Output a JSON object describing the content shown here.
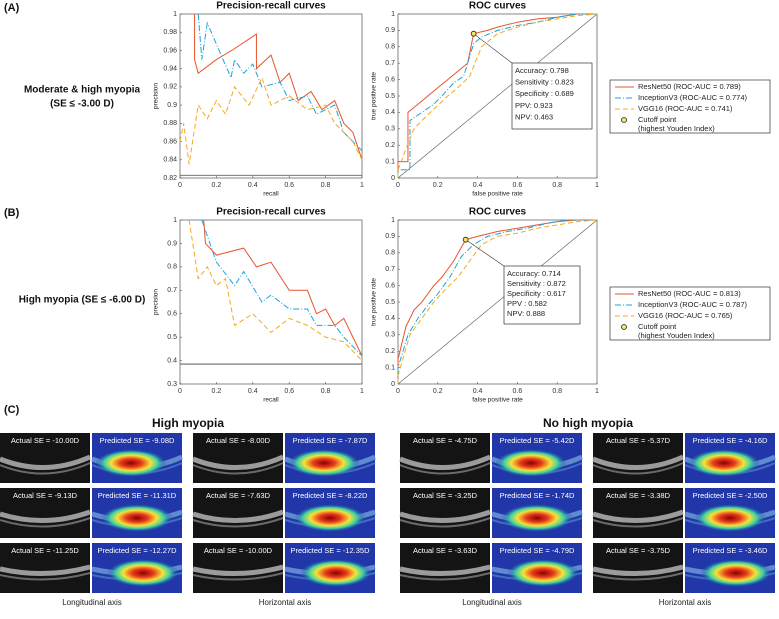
{
  "panel_labels": [
    "(A)",
    "(B)",
    "(C)"
  ],
  "row_labels": [
    [
      "Moderate & high myopia",
      "(SE ≤ -3.00 D)"
    ],
    [
      "High myopia (SE ≤ -6.00 D)"
    ]
  ],
  "chart_data": [
    {
      "type": "line",
      "title": "Precision-recall curves",
      "xlabel": "recall",
      "ylabel": "precision",
      "xlim": [
        0,
        1
      ],
      "ylim": [
        0.82,
        1
      ],
      "xticks": [
        0,
        0.2,
        0.4,
        0.6,
        0.8,
        1
      ],
      "yticks": [
        0.82,
        0.84,
        0.86,
        0.88,
        0.9,
        0.92,
        0.94,
        0.96,
        0.98,
        1
      ],
      "baseline": 0.823,
      "series": [
        {
          "color": "#e8552c",
          "style": "solid",
          "x": [
            0.08,
            0.08,
            0.1,
            0.2,
            0.3,
            0.42,
            0.42,
            0.5,
            0.55,
            0.6,
            0.65,
            0.72,
            0.78,
            0.85,
            0.9,
            0.95,
            1
          ],
          "values": [
            1,
            0.95,
            0.935,
            0.95,
            0.962,
            0.978,
            0.94,
            0.955,
            0.925,
            0.935,
            0.905,
            0.915,
            0.895,
            0.905,
            0.88,
            0.87,
            0.84
          ]
        },
        {
          "color": "#1aa3e0",
          "style": "dashdot",
          "x": [
            0.1,
            0.12,
            0.15,
            0.28,
            0.3,
            0.35,
            0.4,
            0.45,
            0.55,
            0.6,
            0.7,
            0.75,
            0.85,
            0.9,
            1
          ],
          "values": [
            1,
            0.95,
            0.99,
            0.93,
            0.95,
            0.935,
            0.945,
            0.92,
            0.925,
            0.905,
            0.91,
            0.89,
            0.9,
            0.87,
            0.85
          ]
        },
        {
          "color": "#f5a81c",
          "style": "dashed",
          "x": [
            0,
            0.02,
            0.05,
            0.1,
            0.15,
            0.2,
            0.25,
            0.3,
            0.38,
            0.45,
            0.5,
            0.6,
            0.7,
            0.8,
            0.85,
            0.95,
            1
          ],
          "values": [
            0.86,
            0.88,
            0.835,
            0.9,
            0.885,
            0.905,
            0.89,
            0.92,
            0.9,
            0.93,
            0.9,
            0.91,
            0.895,
            0.9,
            0.88,
            0.86,
            0.84
          ]
        }
      ]
    },
    {
      "type": "line",
      "title": "ROC curves",
      "xlabel": "false positive rate",
      "ylabel": "true positive rate",
      "xlim": [
        0,
        1
      ],
      "ylim": [
        0,
        1
      ],
      "xticks": [
        0,
        0.2,
        0.4,
        0.6,
        0.8,
        1
      ],
      "yticks": [
        0,
        0.1,
        0.2,
        0.3,
        0.4,
        0.5,
        0.6,
        0.7,
        0.8,
        0.9,
        1
      ],
      "diagonal": true,
      "series": [
        {
          "name": "ResNet50 (ROC-AUC = 0.789)",
          "color": "#e8552c",
          "style": "solid",
          "x": [
            0,
            0,
            0.05,
            0.05,
            0.1,
            0.15,
            0.2,
            0.25,
            0.3,
            0.35,
            0.38,
            0.45,
            0.5,
            0.6,
            0.7,
            0.8,
            0.9,
            1
          ],
          "values": [
            0,
            0.1,
            0.1,
            0.4,
            0.45,
            0.5,
            0.55,
            0.6,
            0.65,
            0.7,
            0.88,
            0.9,
            0.92,
            0.95,
            0.97,
            0.98,
            1,
            1
          ]
        },
        {
          "name": "InceptionV3 (ROC-AUC = 0.774)",
          "color": "#1aa3e0",
          "style": "dashdot",
          "x": [
            0,
            0,
            0.06,
            0.06,
            0.12,
            0.18,
            0.22,
            0.28,
            0.33,
            0.38,
            0.42,
            0.5,
            0.6,
            0.7,
            0.8,
            0.9,
            1
          ],
          "values": [
            0,
            0.05,
            0.05,
            0.35,
            0.4,
            0.45,
            0.5,
            0.58,
            0.62,
            0.82,
            0.86,
            0.9,
            0.93,
            0.95,
            0.98,
            1,
            1
          ]
        },
        {
          "name": "VGG16 (ROC-AUC = 0.741)",
          "color": "#f5a81c",
          "style": "dashed",
          "x": [
            0,
            0,
            0.08,
            0.12,
            0.18,
            0.25,
            0.3,
            0.36,
            0.42,
            0.5,
            0.6,
            0.7,
            0.8,
            0.9,
            1
          ],
          "values": [
            0,
            0.05,
            0.3,
            0.35,
            0.42,
            0.5,
            0.55,
            0.62,
            0.8,
            0.88,
            0.92,
            0.95,
            0.97,
            0.99,
            1
          ]
        }
      ],
      "cutoff": {
        "x": 0.38,
        "y": 0.88
      },
      "cutoff_label": [
        "Cutoff point",
        "(highest Youden Index)"
      ],
      "annotation": [
        "Accuracy: 0.798",
        "Sensitivity : 0.823",
        "Specificity : 0.689",
        "PPV: 0.923",
        "NPV: 0.463"
      ]
    },
    {
      "type": "line",
      "title": "Precision-recall curves",
      "xlabel": "recall",
      "ylabel": "precision",
      "xlim": [
        0,
        1
      ],
      "ylim": [
        0.3,
        1
      ],
      "xticks": [
        0,
        0.2,
        0.4,
        0.6,
        0.8,
        1
      ],
      "yticks": [
        0.3,
        0.4,
        0.5,
        0.6,
        0.7,
        0.8,
        0.9,
        1
      ],
      "baseline": 0.385,
      "series": [
        {
          "color": "#e8552c",
          "style": "solid",
          "x": [
            0.13,
            0.14,
            0.2,
            0.35,
            0.42,
            0.5,
            0.6,
            0.7,
            0.75,
            0.8,
            0.85,
            0.9,
            0.95,
            1
          ],
          "values": [
            1,
            0.9,
            0.85,
            0.88,
            0.8,
            0.82,
            0.7,
            0.7,
            0.6,
            0.62,
            0.55,
            0.58,
            0.5,
            0.42
          ]
        },
        {
          "color": "#1aa3e0",
          "style": "dashdot",
          "x": [
            0.12,
            0.2,
            0.3,
            0.35,
            0.45,
            0.5,
            0.6,
            0.7,
            0.75,
            0.85,
            0.9,
            1
          ],
          "values": [
            1,
            0.82,
            0.72,
            0.78,
            0.65,
            0.68,
            0.62,
            0.62,
            0.55,
            0.55,
            0.5,
            0.42
          ]
        },
        {
          "color": "#f5a81c",
          "style": "dashed",
          "x": [
            0.05,
            0.1,
            0.15,
            0.2,
            0.25,
            0.3,
            0.4,
            0.5,
            0.6,
            0.7,
            0.8,
            0.9,
            1
          ],
          "values": [
            1,
            0.75,
            0.8,
            0.72,
            0.75,
            0.55,
            0.6,
            0.52,
            0.58,
            0.55,
            0.5,
            0.48,
            0.4
          ]
        }
      ]
    },
    {
      "type": "line",
      "title": "ROC curves",
      "xlabel": "false positive rate",
      "ylabel": "true positive rate",
      "xlim": [
        0,
        1
      ],
      "ylim": [
        0,
        1
      ],
      "xticks": [
        0,
        0.2,
        0.4,
        0.6,
        0.8,
        1
      ],
      "yticks": [
        0,
        0.1,
        0.2,
        0.3,
        0.4,
        0.5,
        0.6,
        0.7,
        0.8,
        0.9,
        1
      ],
      "diagonal": true,
      "series": [
        {
          "name": "ResNet50 (ROC-AUC = 0.813)",
          "color": "#e8552c",
          "style": "solid",
          "x": [
            0,
            0,
            0.04,
            0.08,
            0.12,
            0.18,
            0.22,
            0.28,
            0.34,
            0.4,
            0.5,
            0.6,
            0.7,
            0.8,
            0.9,
            1
          ],
          "values": [
            0,
            0.15,
            0.35,
            0.45,
            0.5,
            0.6,
            0.65,
            0.75,
            0.88,
            0.9,
            0.93,
            0.95,
            0.97,
            0.99,
            1,
            1
          ]
        },
        {
          "name": "InceptionV3 (ROC-AUC = 0.787)",
          "color": "#1aa3e0",
          "style": "dashdot",
          "x": [
            0,
            0,
            0.05,
            0.1,
            0.15,
            0.2,
            0.26,
            0.32,
            0.38,
            0.45,
            0.55,
            0.65,
            0.75,
            0.85,
            1
          ],
          "values": [
            0,
            0.1,
            0.3,
            0.4,
            0.48,
            0.55,
            0.65,
            0.78,
            0.85,
            0.9,
            0.93,
            0.95,
            0.98,
            1,
            1
          ]
        },
        {
          "name": "VGG16 (ROC-AUC = 0.765)",
          "color": "#f5a81c",
          "style": "dashed",
          "x": [
            0,
            0,
            0.06,
            0.12,
            0.18,
            0.24,
            0.3,
            0.36,
            0.42,
            0.5,
            0.6,
            0.7,
            0.8,
            0.9,
            1
          ],
          "values": [
            0,
            0.05,
            0.3,
            0.4,
            0.5,
            0.58,
            0.65,
            0.75,
            0.85,
            0.9,
            0.92,
            0.95,
            0.97,
            0.99,
            1
          ]
        }
      ],
      "cutoff": {
        "x": 0.34,
        "y": 0.88
      },
      "cutoff_label": [
        "Cutoff point",
        "(highest Youden Index)"
      ],
      "annotation": [
        "Accuracy: 0.714",
        "Sensitivity : 0.872",
        "Specificity : 0.617",
        "PPV : 0.582",
        "NPV: 0.888"
      ]
    }
  ],
  "panel_c": {
    "axis_labels": [
      "Longitudinal axis",
      "Horizontal axis"
    ],
    "groups": [
      {
        "title": "High myopia",
        "cells": [
          [
            "Actual SE = -10.00D",
            "Predicted SE = -9.08D",
            "Actual SE = -8.00D",
            "Predicted SE = -7.87D"
          ],
          [
            "Actual SE = -9.13D",
            "Predicted SE = -11.31D",
            "Actual SE = -7.63D",
            "Predicted SE = -8.22D"
          ],
          [
            "Actual SE = -11.25D",
            "Predicted SE = -12.27D",
            "Actual SE = -10.00D",
            "Predicted SE = -12.35D"
          ]
        ]
      },
      {
        "title": "No high myopia",
        "cells": [
          [
            "Actual SE = -4.75D",
            "Predicted SE = -5.42D",
            "Actual SE = -5.37D",
            "Predicted SE = -4.16D"
          ],
          [
            "Actual SE = -3.25D",
            "Predicted SE = -1.74D",
            "Actual SE = -3.38D",
            "Predicted SE = -2.50D"
          ],
          [
            "Actual SE = -3.63D",
            "Predicted SE = -4.79D",
            "Actual SE = -3.75D",
            "Predicted SE = -3.46D"
          ]
        ]
      }
    ]
  }
}
